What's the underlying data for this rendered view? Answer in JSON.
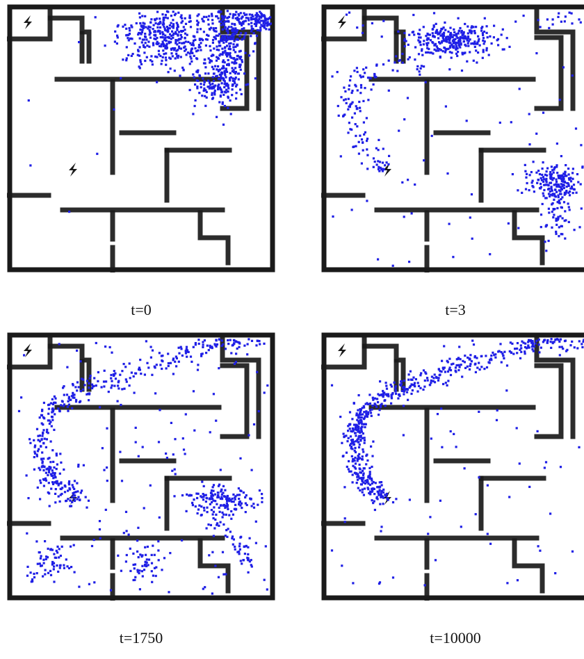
{
  "figure": {
    "wall_color": "#1a1a1a",
    "particle_color": "#1f1fe6",
    "floor_color": "#ffffff",
    "icons": [
      "lightning-bolt-icon",
      "lightning-bolt-icon"
    ],
    "panels": [
      {
        "caption": "t=0",
        "distribution": "clustered top-right, hooking down along right corridor"
      },
      {
        "caption": "t=3",
        "distribution": "cluster top-center, trail down left side, cluster right-middle"
      },
      {
        "caption": "t=1750",
        "distribution": "arc from top-right across top, down left to lower bolt; clusters right-middle and bottom"
      },
      {
        "caption": "t=10000",
        "distribution": "arc from top-right across top, down left to lower bolt; sparse elsewhere"
      }
    ]
  }
}
